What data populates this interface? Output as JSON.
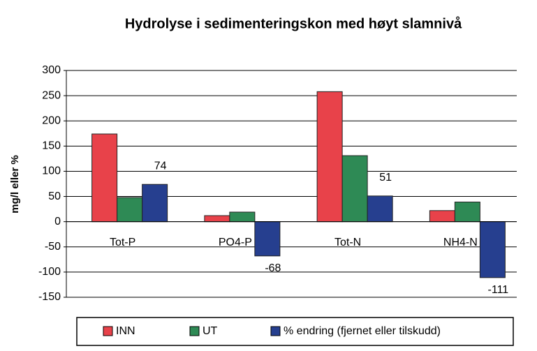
{
  "chart_data": {
    "type": "bar",
    "title": "Hydrolyse i sedimenteringskon med høyt slamnivå",
    "y_label": "mg/l eller %",
    "categories": [
      "Tot-P",
      "PO4-P",
      "Tot-N",
      "NH4-N"
    ],
    "series": [
      {
        "name": "INN",
        "color": "#e8424a",
        "values": [
          174,
          12,
          258,
          22
        ]
      },
      {
        "name": "UT",
        "color": "#2e8a55",
        "values": [
          48,
          19,
          131,
          39
        ]
      },
      {
        "name": "% endring (fjernet eller tilskudd)",
        "color": "#263f8f",
        "values": [
          74,
          -68,
          51,
          -111
        ],
        "data_labels": true
      }
    ],
    "ylim": [
      -150,
      300
    ],
    "yticks": [
      -150,
      -100,
      -50,
      0,
      50,
      100,
      150,
      200,
      250,
      300
    ],
    "grid": true
  }
}
